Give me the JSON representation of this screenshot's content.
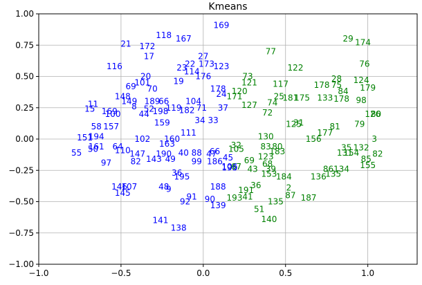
{
  "chart_data": {
    "type": "scatter",
    "title": "Kmeans",
    "xlabel": "",
    "ylabel": "",
    "xlim": [
      -1.0,
      1.3
    ],
    "ylim": [
      -1.0,
      1.0
    ],
    "grid": true,
    "x_ticks": [
      "−1.0",
      "−0.5",
      "0.0",
      "0.5",
      "1.0"
    ],
    "x_tick_values": [
      -1.0,
      -0.5,
      0.0,
      0.5,
      1.0
    ],
    "y_ticks": [
      "1.00",
      "0.75",
      "0.50",
      "0.25",
      "0.00",
      "−0.25",
      "−0.50",
      "−0.75",
      "−1.00"
    ],
    "y_tick_values": [
      1.0,
      0.75,
      0.5,
      0.25,
      0.0,
      -0.25,
      -0.5,
      -0.75,
      -1.0
    ],
    "series": [
      {
        "color": "#0000ff",
        "points": [
          {
            "label": "169",
            "x": 0.11,
            "y": 0.91
          },
          {
            "label": "118",
            "x": -0.24,
            "y": 0.83
          },
          {
            "label": "167",
            "x": -0.12,
            "y": 0.8
          },
          {
            "label": "21",
            "x": -0.47,
            "y": 0.76
          },
          {
            "label": "172",
            "x": -0.34,
            "y": 0.74
          },
          {
            "label": "17",
            "x": -0.33,
            "y": 0.66
          },
          {
            "label": "27",
            "x": 0.0,
            "y": 0.66
          },
          {
            "label": "22",
            "x": -0.08,
            "y": 0.6
          },
          {
            "label": "173",
            "x": 0.02,
            "y": 0.6
          },
          {
            "label": "116",
            "x": -0.54,
            "y": 0.58
          },
          {
            "label": "23",
            "x": -0.13,
            "y": 0.57
          },
          {
            "label": "114",
            "x": -0.07,
            "y": 0.54
          },
          {
            "label": "123",
            "x": 0.11,
            "y": 0.58
          },
          {
            "label": "176",
            "x": 0.0,
            "y": 0.5
          },
          {
            "label": "20",
            "x": -0.35,
            "y": 0.5
          },
          {
            "label": "19",
            "x": -0.15,
            "y": 0.46
          },
          {
            "label": "101",
            "x": -0.37,
            "y": 0.45
          },
          {
            "label": "69",
            "x": -0.44,
            "y": 0.42
          },
          {
            "label": "70",
            "x": -0.31,
            "y": 0.4
          },
          {
            "label": "178",
            "x": 0.09,
            "y": 0.4
          },
          {
            "label": "24",
            "x": 0.11,
            "y": 0.36
          },
          {
            "label": "148",
            "x": -0.49,
            "y": 0.34
          },
          {
            "label": "149",
            "x": -0.45,
            "y": 0.3
          },
          {
            "label": "189",
            "x": -0.31,
            "y": 0.3
          },
          {
            "label": "66",
            "x": -0.24,
            "y": 0.3
          },
          {
            "label": "104",
            "x": -0.06,
            "y": 0.3
          },
          {
            "label": "11",
            "x": -0.67,
            "y": 0.28
          },
          {
            "label": "8",
            "x": -0.42,
            "y": 0.26
          },
          {
            "label": "52",
            "x": -0.33,
            "y": 0.24
          },
          {
            "label": "119",
            "x": -0.18,
            "y": 0.25
          },
          {
            "label": "71",
            "x": -0.01,
            "y": 0.25
          },
          {
            "label": "37",
            "x": 0.12,
            "y": 0.25
          },
          {
            "label": "182",
            "x": -0.1,
            "y": 0.23
          },
          {
            "label": "15",
            "x": -0.69,
            "y": 0.24
          },
          {
            "label": "198",
            "x": -0.26,
            "y": 0.22
          },
          {
            "label": "169",
            "x": -0.57,
            "y": 0.22
          },
          {
            "label": "100",
            "x": -0.55,
            "y": 0.2
          },
          {
            "label": "44",
            "x": -0.36,
            "y": 0.2
          },
          {
            "label": "34",
            "x": -0.02,
            "y": 0.15
          },
          {
            "label": "33",
            "x": 0.06,
            "y": 0.15
          },
          {
            "label": "58",
            "x": -0.65,
            "y": 0.1
          },
          {
            "label": "157",
            "x": -0.56,
            "y": 0.1
          },
          {
            "label": "159",
            "x": -0.25,
            "y": 0.13
          },
          {
            "label": "111",
            "x": -0.09,
            "y": 0.05
          },
          {
            "label": "151",
            "x": -0.72,
            "y": 0.01
          },
          {
            "label": "194",
            "x": -0.65,
            "y": 0.02
          },
          {
            "label": "102",
            "x": -0.37,
            "y": 0.0
          },
          {
            "label": "160",
            "x": -0.19,
            "y": 0.0
          },
          {
            "label": "161",
            "x": -0.65,
            "y": -0.06
          },
          {
            "label": "64",
            "x": -0.52,
            "y": -0.06
          },
          {
            "label": "110",
            "x": -0.49,
            "y": -0.09
          },
          {
            "label": "163",
            "x": -0.22,
            "y": -0.04
          },
          {
            "label": "55",
            "x": -0.77,
            "y": -0.11
          },
          {
            "label": "50",
            "x": -0.67,
            "y": -0.08
          },
          {
            "label": "147",
            "x": -0.4,
            "y": -0.12
          },
          {
            "label": "190",
            "x": -0.24,
            "y": -0.12
          },
          {
            "label": "40",
            "x": -0.12,
            "y": -0.11
          },
          {
            "label": "88",
            "x": -0.04,
            "y": -0.11
          },
          {
            "label": "47",
            "x": 0.05,
            "y": -0.12
          },
          {
            "label": "66",
            "x": 0.07,
            "y": -0.1
          },
          {
            "label": "97",
            "x": -0.59,
            "y": -0.19
          },
          {
            "label": "82",
            "x": -0.41,
            "y": -0.18
          },
          {
            "label": "143",
            "x": -0.3,
            "y": -0.16
          },
          {
            "label": "49",
            "x": -0.2,
            "y": -0.16
          },
          {
            "label": "99",
            "x": -0.04,
            "y": -0.18
          },
          {
            "label": "186",
            "x": 0.07,
            "y": -0.18
          },
          {
            "label": "195",
            "x": 0.16,
            "y": -0.23
          },
          {
            "label": "36",
            "x": -0.16,
            "y": -0.27
          },
          {
            "label": "195",
            "x": -0.13,
            "y": -0.3
          },
          {
            "label": "146",
            "x": -0.51,
            "y": -0.38
          },
          {
            "label": "107",
            "x": -0.45,
            "y": -0.38
          },
          {
            "label": "145",
            "x": -0.49,
            "y": -0.43
          },
          {
            "label": "48",
            "x": -0.24,
            "y": -0.38
          },
          {
            "label": "9",
            "x": -0.21,
            "y": -0.4
          },
          {
            "label": "188",
            "x": 0.09,
            "y": -0.38
          },
          {
            "label": "91",
            "x": -0.07,
            "y": -0.46
          },
          {
            "label": "92",
            "x": -0.11,
            "y": -0.5
          },
          {
            "label": "90",
            "x": 0.04,
            "y": -0.48
          },
          {
            "label": "139",
            "x": 0.09,
            "y": -0.53
          },
          {
            "label": "141",
            "x": -0.26,
            "y": -0.65
          },
          {
            "label": "138",
            "x": -0.15,
            "y": -0.71
          },
          {
            "label": "45",
            "x": 0.15,
            "y": -0.15
          },
          {
            "label": "106",
            "x": 0.16,
            "y": -0.22
          }
        ]
      },
      {
        "color": "#008000",
        "points": [
          {
            "label": "29",
            "x": 0.88,
            "y": 0.8
          },
          {
            "label": "174",
            "x": 0.97,
            "y": 0.77
          },
          {
            "label": "77",
            "x": 0.41,
            "y": 0.7
          },
          {
            "label": "76",
            "x": 0.98,
            "y": 0.6
          },
          {
            "label": "122",
            "x": 0.56,
            "y": 0.57
          },
          {
            "label": "73",
            "x": 0.27,
            "y": 0.5
          },
          {
            "label": "121",
            "x": 0.28,
            "y": 0.45
          },
          {
            "label": "117",
            "x": 0.47,
            "y": 0.44
          },
          {
            "label": "28",
            "x": 0.81,
            "y": 0.48
          },
          {
            "label": "124",
            "x": 0.96,
            "y": 0.47
          },
          {
            "label": "178",
            "x": 0.72,
            "y": 0.43
          },
          {
            "label": "75",
            "x": 0.81,
            "y": 0.43
          },
          {
            "label": "179",
            "x": 1.0,
            "y": 0.41
          },
          {
            "label": "84",
            "x": 0.85,
            "y": 0.38
          },
          {
            "label": "120",
            "x": 0.22,
            "y": 0.38
          },
          {
            "label": "171",
            "x": 0.19,
            "y": 0.34
          },
          {
            "label": "74",
            "x": 0.42,
            "y": 0.29
          },
          {
            "label": "25",
            "x": 0.46,
            "y": 0.34
          },
          {
            "label": "181",
            "x": 0.53,
            "y": 0.33
          },
          {
            "label": "175",
            "x": 0.6,
            "y": 0.33
          },
          {
            "label": "133",
            "x": 0.74,
            "y": 0.33
          },
          {
            "label": "178",
            "x": 0.84,
            "y": 0.32
          },
          {
            "label": "98",
            "x": 0.96,
            "y": 0.31
          },
          {
            "label": "127",
            "x": 0.28,
            "y": 0.27
          },
          {
            "label": "72",
            "x": 0.39,
            "y": 0.21
          },
          {
            "label": "126",
            "x": 1.03,
            "y": 0.2
          },
          {
            "label": "80",
            "x": 1.05,
            "y": 0.2
          },
          {
            "label": "31",
            "x": 0.58,
            "y": 0.13
          },
          {
            "label": "125",
            "x": 0.55,
            "y": 0.12
          },
          {
            "label": "79",
            "x": 0.95,
            "y": 0.12
          },
          {
            "label": "81",
            "x": 0.8,
            "y": 0.1
          },
          {
            "label": "177",
            "x": 0.74,
            "y": 0.05
          },
          {
            "label": "156",
            "x": 0.67,
            "y": 0.0
          },
          {
            "label": "3",
            "x": 1.04,
            "y": 0.0
          },
          {
            "label": "130",
            "x": 0.38,
            "y": 0.02
          },
          {
            "label": "32",
            "x": 0.2,
            "y": -0.05
          },
          {
            "label": "105",
            "x": 0.2,
            "y": -0.08
          },
          {
            "label": "83",
            "x": 0.38,
            "y": -0.06
          },
          {
            "label": "80",
            "x": 0.45,
            "y": -0.06
          },
          {
            "label": "183",
            "x": 0.45,
            "y": -0.1
          },
          {
            "label": "35",
            "x": 0.87,
            "y": -0.07
          },
          {
            "label": "132",
            "x": 0.96,
            "y": -0.07
          },
          {
            "label": "131",
            "x": 0.86,
            "y": -0.11
          },
          {
            "label": "154",
            "x": 0.9,
            "y": -0.11
          },
          {
            "label": "82",
            "x": 1.06,
            "y": -0.12
          },
          {
            "label": "123",
            "x": 0.38,
            "y": -0.14
          },
          {
            "label": "69",
            "x": 0.28,
            "y": -0.17
          },
          {
            "label": "85",
            "x": 0.99,
            "y": -0.16
          },
          {
            "label": "68",
            "x": 0.39,
            "y": -0.2
          },
          {
            "label": "43",
            "x": 0.3,
            "y": -0.24
          },
          {
            "label": "39",
            "x": 0.41,
            "y": -0.24
          },
          {
            "label": "155",
            "x": 1.0,
            "y": -0.21
          },
          {
            "label": "86",
            "x": 0.76,
            "y": -0.24
          },
          {
            "label": "134",
            "x": 0.84,
            "y": -0.24
          },
          {
            "label": "135",
            "x": 0.79,
            "y": -0.28
          },
          {
            "label": "136",
            "x": 0.7,
            "y": -0.3
          },
          {
            "label": "153",
            "x": 0.4,
            "y": -0.28
          },
          {
            "label": "184",
            "x": 0.49,
            "y": -0.3
          },
          {
            "label": "36",
            "x": 0.32,
            "y": -0.37
          },
          {
            "label": "2",
            "x": 0.52,
            "y": -0.39
          },
          {
            "label": "191",
            "x": 0.26,
            "y": -0.41
          },
          {
            "label": "41",
            "x": 0.27,
            "y": -0.46
          },
          {
            "label": "193",
            "x": 0.19,
            "y": -0.47
          },
          {
            "label": "87",
            "x": 0.53,
            "y": -0.45
          },
          {
            "label": "187",
            "x": 0.64,
            "y": -0.47
          },
          {
            "label": "135",
            "x": 0.44,
            "y": -0.5
          },
          {
            "label": "51",
            "x": 0.34,
            "y": -0.56
          },
          {
            "label": "140",
            "x": 0.4,
            "y": -0.64
          },
          {
            "label": "67",
            "x": 0.2,
            "y": -0.22
          }
        ]
      }
    ]
  }
}
